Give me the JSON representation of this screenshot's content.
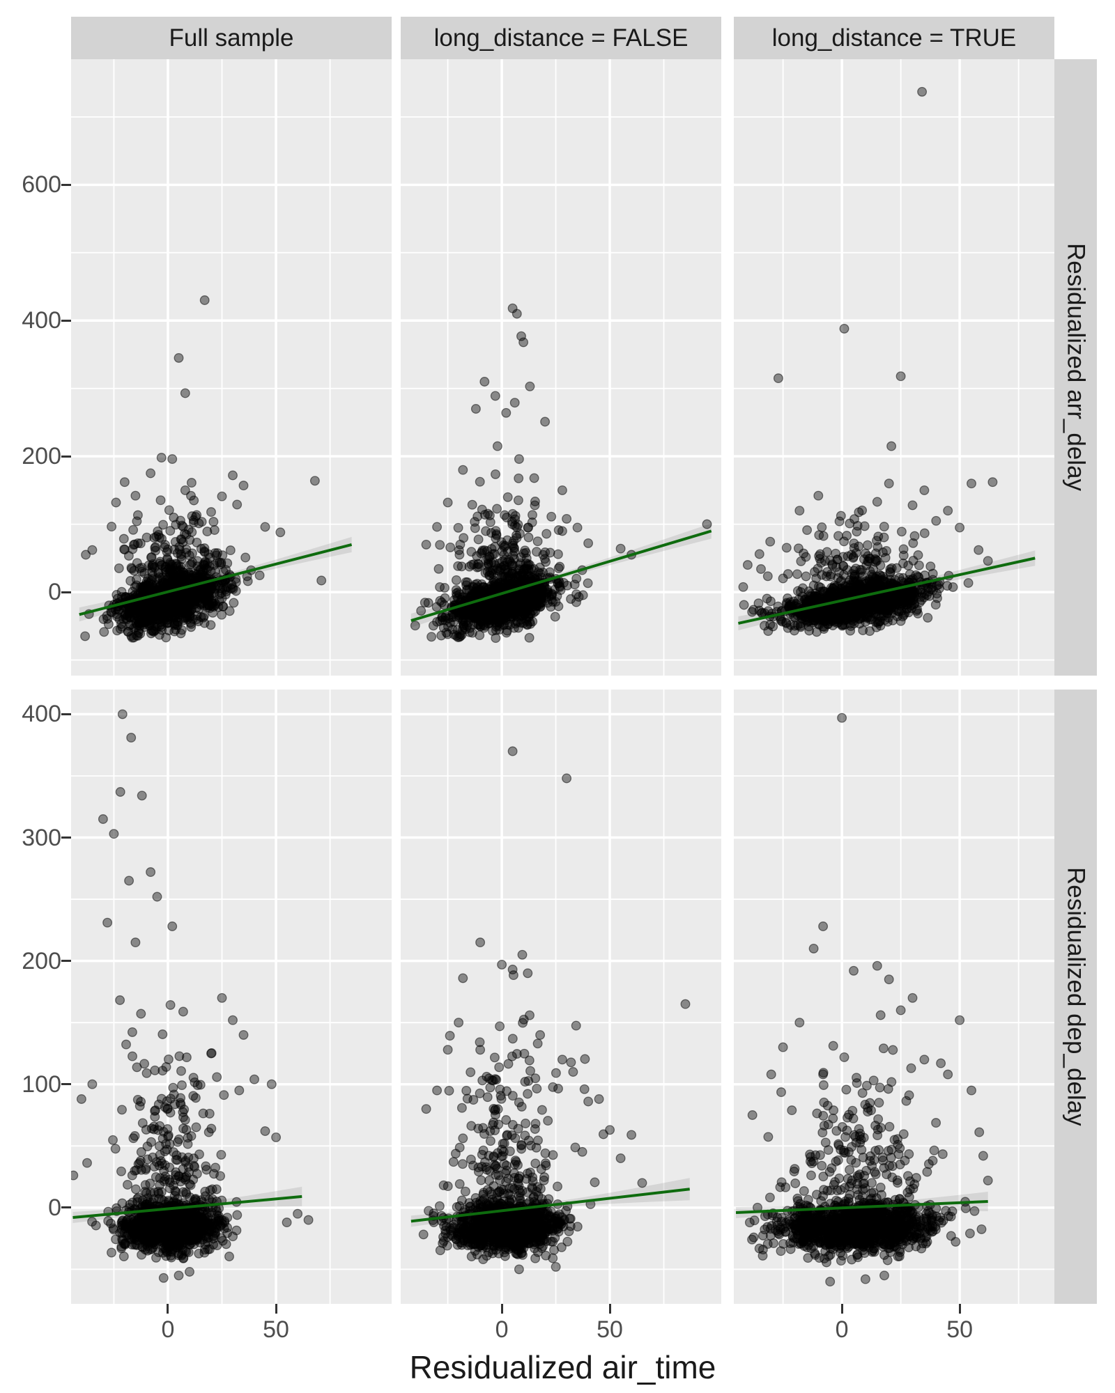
{
  "labels": {
    "x_axis_title": "Residualized air_time",
    "col_strips": [
      "Full sample",
      "long_distance = FALSE",
      "long_distance = TRUE"
    ],
    "row_strips": [
      "Residualized arr_delay",
      "Residualized dep_delay"
    ]
  },
  "style": {
    "background": "#ffffff",
    "panel_bg": "#ebebeb",
    "strip_bg": "#d3d3d3",
    "grid_color": "#ffffff",
    "tick_color": "#333333",
    "tick_label_color": "#4d4d4d",
    "point_color": "#000000",
    "point_opacity": 0.42,
    "trend_color": "#0e6b0e",
    "ribbon_color": "rgba(125,125,125,0.20)"
  },
  "chart_data": {
    "type": "scatter",
    "description": "Faceted scatter plots (2 rows x 3 columns) of residualized arrival/departure delay versus residualized air time, with dark-green linear regression lines and faint confidence ribbons. Dense near-black point clouds centered slightly below 0 with vertical sprays of positive outliers.",
    "xlabel": "Residualized air_time",
    "columns": [
      {
        "label": "Full sample",
        "x_domain": [
          -44.8,
          103.5
        ],
        "x_ticks": [
          0,
          50
        ],
        "x_minor": [
          -25,
          25,
          75
        ]
      },
      {
        "label": "long_distance = FALSE",
        "x_domain": [
          -46.8,
          101.6
        ],
        "x_ticks": [
          0,
          50
        ],
        "x_minor": [
          -25,
          25,
          75
        ]
      },
      {
        "label": "long_distance = TRUE",
        "x_domain": [
          -45.9,
          90.2
        ],
        "x_ticks": [
          0,
          50
        ],
        "x_minor": [
          -25,
          25,
          75
        ]
      }
    ],
    "rows": [
      {
        "label": "Residualized arr_delay",
        "y_domain": [
          -123,
          785
        ],
        "y_ticks": [
          600,
          400,
          200,
          0
        ],
        "y_minor": [
          700,
          500,
          300,
          100,
          -100
        ]
      },
      {
        "label": "Residualized dep_delay",
        "y_domain": [
          -78,
          420
        ],
        "y_ticks": [
          400,
          300,
          200,
          100,
          0
        ],
        "y_minor": [
          350,
          250,
          150,
          50,
          -50
        ]
      }
    ],
    "panels": [
      {
        "facet_col": "Full sample",
        "facet_row": "Residualized arr_delay",
        "col": 0,
        "row": 0,
        "seed": 11,
        "cloud": {
          "n": 1100,
          "mx": 1,
          "sx": 12,
          "xmin": -42,
          "xmax": 78,
          "base": -12,
          "slope": 0.7,
          "sy": 18,
          "ymin": -68
        },
        "spray": {
          "n": 140,
          "mx": 3,
          "sx": 13,
          "y0": 25,
          "ys": 50,
          "ymax": 205
        },
        "outliers": [
          [
            17,
            430
          ],
          [
            5,
            345
          ],
          [
            8,
            293
          ],
          [
            -3,
            198
          ],
          [
            2,
            196
          ],
          [
            -20,
            162
          ],
          [
            30,
            172
          ],
          [
            35,
            157
          ],
          [
            68,
            164
          ],
          [
            25,
            141
          ],
          [
            32,
            129
          ],
          [
            8,
            150
          ],
          [
            -15,
            142
          ],
          [
            -24,
            132
          ],
          [
            12,
            135
          ],
          [
            45,
            96
          ],
          [
            52,
            88
          ],
          [
            71,
            17
          ],
          [
            -35,
            62
          ],
          [
            -38,
            55
          ],
          [
            20,
            118
          ],
          [
            -8,
            175
          ]
        ],
        "trend": {
          "x1": -41,
          "y1": -33,
          "x2": 85,
          "y2": 70
        },
        "ribbon": [
          10,
          4,
          11
        ]
      },
      {
        "facet_col": "long_distance = FALSE",
        "facet_row": "Residualized arr_delay",
        "col": 1,
        "row": 0,
        "seed": 22,
        "cloud": {
          "n": 1100,
          "mx": 0,
          "sx": 12,
          "xmin": -42,
          "xmax": 60,
          "base": -14,
          "slope": 0.7,
          "sy": 18,
          "ymin": -68
        },
        "spray": {
          "n": 150,
          "mx": 2,
          "sx": 12,
          "y0": 25,
          "ys": 52,
          "ymax": 210
        },
        "outliers": [
          [
            5,
            418
          ],
          [
            7,
            410
          ],
          [
            9,
            377
          ],
          [
            10,
            368
          ],
          [
            -8,
            310
          ],
          [
            13,
            303
          ],
          [
            -3,
            289
          ],
          [
            6,
            279
          ],
          [
            -12,
            270
          ],
          [
            2,
            264
          ],
          [
            20,
            251
          ],
          [
            -2,
            215
          ],
          [
            8,
            196
          ],
          [
            -18,
            180
          ],
          [
            15,
            168
          ],
          [
            28,
            150
          ],
          [
            -25,
            132
          ],
          [
            30,
            108
          ],
          [
            35,
            95
          ],
          [
            28,
            90
          ],
          [
            40,
            72
          ],
          [
            55,
            64
          ],
          [
            95,
            100
          ],
          [
            60,
            55
          ],
          [
            -30,
            96
          ],
          [
            -35,
            70
          ]
        ],
        "trend": {
          "x1": -42,
          "y1": -42,
          "x2": 97,
          "y2": 90
        },
        "ribbon": [
          10,
          4,
          11
        ]
      },
      {
        "facet_col": "long_distance = TRUE",
        "facet_row": "Residualized arr_delay",
        "col": 2,
        "row": 0,
        "seed": 33,
        "cloud": {
          "n": 1200,
          "mx": 6,
          "sx": 15,
          "xmin": -42,
          "xmax": 62,
          "base": -18,
          "slope": 0.55,
          "sy": 15,
          "ymin": -60
        },
        "spray": {
          "n": 110,
          "mx": 5,
          "sx": 15,
          "y0": 20,
          "ys": 45,
          "ymax": 165
        },
        "outliers": [
          [
            34,
            737
          ],
          [
            1,
            388
          ],
          [
            -27,
            315
          ],
          [
            25,
            318
          ],
          [
            21,
            215
          ],
          [
            55,
            160
          ],
          [
            64,
            162
          ],
          [
            45,
            120
          ],
          [
            -10,
            142
          ],
          [
            15,
            133
          ],
          [
            -18,
            120
          ],
          [
            58,
            62
          ],
          [
            62,
            46
          ],
          [
            -35,
            56
          ],
          [
            50,
            95
          ],
          [
            40,
            105
          ],
          [
            30,
            128
          ],
          [
            -40,
            40
          ],
          [
            35,
            150
          ],
          [
            20,
            160
          ]
        ],
        "trend": {
          "x1": -44,
          "y1": -46,
          "x2": 82,
          "y2": 50
        },
        "ribbon": [
          10,
          4,
          11
        ]
      },
      {
        "facet_col": "Full sample",
        "facet_row": "Residualized dep_delay",
        "col": 0,
        "row": 1,
        "seed": 44,
        "cloud": {
          "n": 1100,
          "mx": 0,
          "sx": 11,
          "xmin": -38,
          "xmax": 62,
          "base": -15,
          "slope": 0.05,
          "sy": 10,
          "ymin": -42
        },
        "spray": {
          "n": 170,
          "mx": 0,
          "sx": 12,
          "y0": 12,
          "ys": 60,
          "ymax": 345
        },
        "outliers": [
          [
            -21,
            400
          ],
          [
            -17,
            381
          ],
          [
            -22,
            337
          ],
          [
            -12,
            334
          ],
          [
            -30,
            315
          ],
          [
            -25,
            303
          ],
          [
            -8,
            272
          ],
          [
            -18,
            265
          ],
          [
            -28,
            231
          ],
          [
            2,
            228
          ],
          [
            -5,
            252
          ],
          [
            -15,
            215
          ],
          [
            25,
            170
          ],
          [
            30,
            152
          ],
          [
            35,
            140
          ],
          [
            20,
            125
          ],
          [
            40,
            104
          ],
          [
            48,
            100
          ],
          [
            45,
            62
          ],
          [
            50,
            57
          ],
          [
            60,
            -5
          ],
          [
            55,
            -12
          ],
          [
            65,
            -10
          ],
          [
            5,
            -55
          ],
          [
            10,
            -52
          ],
          [
            -2,
            -57
          ],
          [
            -35,
            100
          ],
          [
            -40,
            88
          ],
          [
            33,
            95
          ]
        ],
        "trend": {
          "x1": -44,
          "y1": -8,
          "x2": 62,
          "y2": 9
        },
        "ribbon": [
          8,
          4,
          14
        ]
      },
      {
        "facet_col": "long_distance = FALSE",
        "facet_row": "Residualized dep_delay",
        "col": 1,
        "row": 1,
        "seed": 55,
        "cloud": {
          "n": 1100,
          "mx": 2,
          "sx": 12,
          "xmin": -38,
          "xmax": 55,
          "base": -15,
          "slope": 0.05,
          "sy": 10,
          "ymin": -42
        },
        "spray": {
          "n": 180,
          "mx": 2,
          "sx": 13,
          "y0": 12,
          "ys": 62,
          "ymax": 310
        },
        "outliers": [
          [
            5,
            370
          ],
          [
            30,
            348
          ],
          [
            -10,
            215
          ],
          [
            0,
            197
          ],
          [
            5,
            193
          ],
          [
            12,
            190
          ],
          [
            -18,
            186
          ],
          [
            85,
            165
          ],
          [
            40,
            86
          ],
          [
            45,
            88
          ],
          [
            50,
            63
          ],
          [
            60,
            59
          ],
          [
            28,
            120
          ],
          [
            33,
            110
          ],
          [
            -20,
            150
          ],
          [
            -25,
            128
          ],
          [
            25,
            -48
          ],
          [
            8,
            -50
          ],
          [
            -30,
            95
          ],
          [
            55,
            40
          ],
          [
            65,
            20
          ],
          [
            -35,
            80
          ]
        ],
        "trend": {
          "x1": -42,
          "y1": -11,
          "x2": 87,
          "y2": 15
        },
        "ribbon": [
          8,
          4,
          16
        ]
      },
      {
        "facet_col": "long_distance = TRUE",
        "facet_row": "Residualized dep_delay",
        "col": 2,
        "row": 1,
        "seed": 66,
        "cloud": {
          "n": 1200,
          "mx": 6,
          "sx": 16,
          "xmin": -40,
          "xmax": 62,
          "base": -15,
          "slope": 0.03,
          "sy": 10,
          "ymin": -45
        },
        "spray": {
          "n": 160,
          "mx": 8,
          "sx": 16,
          "y0": 12,
          "ys": 55,
          "ymax": 235
        },
        "outliers": [
          [
            0,
            397
          ],
          [
            -8,
            228
          ],
          [
            -12,
            210
          ],
          [
            15,
            196
          ],
          [
            5,
            192
          ],
          [
            30,
            170
          ],
          [
            20,
            185
          ],
          [
            50,
            152
          ],
          [
            35,
            120
          ],
          [
            42,
            117
          ],
          [
            55,
            95
          ],
          [
            -25,
            130
          ],
          [
            -30,
            108
          ],
          [
            60,
            42
          ],
          [
            10,
            -58
          ],
          [
            18,
            -55
          ],
          [
            -5,
            -60
          ],
          [
            25,
            160
          ],
          [
            45,
            108
          ],
          [
            -18,
            150
          ],
          [
            -38,
            75
          ],
          [
            62,
            22
          ]
        ],
        "trend": {
          "x1": -45,
          "y1": -4,
          "x2": 62,
          "y2": 5
        },
        "ribbon": [
          8,
          4,
          14
        ]
      }
    ]
  }
}
